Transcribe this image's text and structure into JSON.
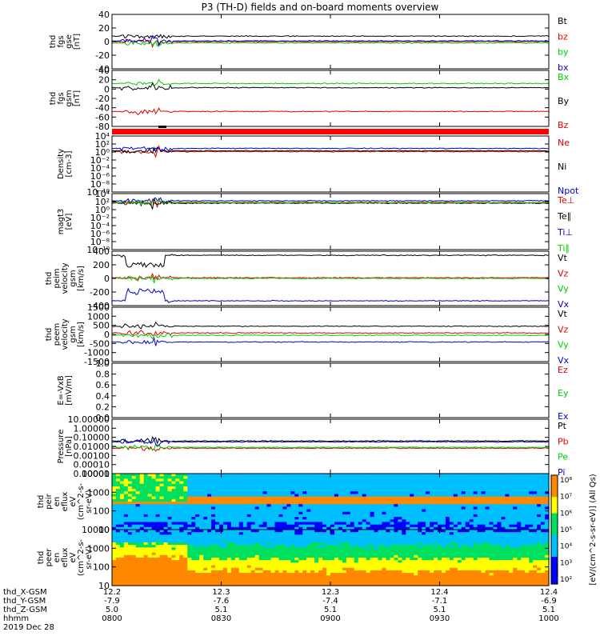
{
  "title": "P3 (TH-D) fields and on-board moments overview",
  "colors": {
    "black": "#000000",
    "red": "#e00000",
    "green": "#00cc00",
    "blue": "#0000d0"
  },
  "chart_data": [
    {
      "type": "line",
      "panel_id": "fgs-gse",
      "ylabel_lines": [
        "thd",
        "fgs",
        "gse",
        "[nT]"
      ],
      "ylim": [
        -40,
        40
      ],
      "yticks": [
        "40",
        "20",
        "0",
        "-20",
        "-40"
      ],
      "series": [
        {
          "name": "Bt",
          "color": "#000000",
          "baseline": 8
        },
        {
          "name": "bz",
          "color": "#e00000",
          "baseline": 0
        },
        {
          "name": "by",
          "color": "#00cc00",
          "baseline": -2
        },
        {
          "name": "bx",
          "color": "#0000d0",
          "baseline": 1
        }
      ]
    },
    {
      "type": "line",
      "panel_id": "fgs-gsm",
      "ylabel_lines": [
        "thd",
        "fgs",
        "gsm",
        "[nT]"
      ],
      "ylim": [
        -80,
        40
      ],
      "yticks": [
        "40",
        "20",
        "0",
        "-20",
        "-40",
        "-60",
        "-80"
      ],
      "series": [
        {
          "name": "Bx",
          "color": "#00cc00",
          "baseline": 12
        },
        {
          "name": "By",
          "color": "#000000",
          "baseline": 3
        },
        {
          "name": "Bz",
          "color": "#e00000",
          "baseline": -48
        }
      ]
    },
    {
      "type": "line",
      "panel_id": "density",
      "ylabel_lines": [
        "Density",
        "[cm-3]"
      ],
      "log": true,
      "ylim": [
        -10,
        4
      ],
      "yticks": [
        "10⁴",
        "10²",
        "10⁰",
        "10⁻²",
        "10⁻⁴",
        "10⁻⁶",
        "10⁻⁸",
        "10⁻¹⁰"
      ],
      "series": [
        {
          "name": "Ne",
          "color": "#e00000",
          "baseline": 0.1
        },
        {
          "name": "Ni",
          "color": "#000000",
          "baseline": 0.3
        },
        {
          "name": "Npot",
          "color": "#0000d0",
          "baseline": 0.9
        }
      ]
    },
    {
      "type": "line",
      "panel_id": "temperature",
      "ylabel_lines": [
        "magt3",
        "[eV]"
      ],
      "log": true,
      "ylim": [
        -10,
        4
      ],
      "yticks": [
        "10⁴",
        "10²",
        "10⁰",
        "10⁻²",
        "10⁻⁴",
        "10⁻⁶",
        "10⁻⁸",
        "10⁻¹⁰"
      ],
      "series": [
        {
          "name": "Te⊥",
          "color": "#e00000",
          "baseline": 1.8
        },
        {
          "name": "Te∥",
          "color": "#000000",
          "baseline": 1.6
        },
        {
          "name": "Ti⊥",
          "color": "#0000d0",
          "baseline": 2.2
        },
        {
          "name": "Ti∥",
          "color": "#00cc00",
          "baseline": 1.7
        }
      ]
    },
    {
      "type": "line",
      "panel_id": "peim-velocity",
      "ylabel_lines": [
        "thd",
        "peim",
        "velocity",
        "gsm",
        "[km/s]"
      ],
      "ylim": [
        -400,
        400
      ],
      "yticks": [
        "400",
        "200",
        "0",
        "-200",
        "-400"
      ],
      "series": [
        {
          "name": "Vt",
          "color": "#000000",
          "baseline": 340
        },
        {
          "name": "Vz",
          "color": "#e00000",
          "baseline": 10
        },
        {
          "name": "Vy",
          "color": "#00cc00",
          "baseline": 0
        },
        {
          "name": "Vx",
          "color": "#0000d0",
          "baseline": -330
        }
      ]
    },
    {
      "type": "line",
      "panel_id": "peem-velocity",
      "ylabel_lines": [
        "thd",
        "peem",
        "velocity",
        "gsm",
        "[km/s]"
      ],
      "ylim": [
        -1500,
        1500
      ],
      "yticks": [
        "1500",
        "1000",
        "500",
        "0",
        "-500",
        "-1000",
        "-1500"
      ],
      "series": [
        {
          "name": "Vt",
          "color": "#000000",
          "baseline": 450
        },
        {
          "name": "Vz",
          "color": "#e00000",
          "baseline": 80
        },
        {
          "name": "Vy",
          "color": "#00cc00",
          "baseline": -50
        },
        {
          "name": "Vx",
          "color": "#0000d0",
          "baseline": -420
        }
      ]
    },
    {
      "type": "line",
      "panel_id": "efield",
      "ylabel_lines": [
        "E=-VxB",
        "[mV/m]"
      ],
      "ylim": [
        0.0,
        1.0
      ],
      "yticks": [
        "1.0",
        "0.8",
        "0.6",
        "0.4",
        "0.2",
        "0.0"
      ],
      "series": [
        {
          "name": "Ez",
          "color": "#e00000"
        },
        {
          "name": "Ey",
          "color": "#00cc00"
        },
        {
          "name": "Ex",
          "color": "#0000d0"
        }
      ]
    },
    {
      "type": "line",
      "panel_id": "pressure",
      "ylabel_lines": [
        "Pressure",
        "[nPa]"
      ],
      "log": true,
      "ylim": [
        -5,
        1
      ],
      "yticks": [
        "10.00000",
        "1.00000",
        "0.10000",
        "0.01000",
        "0.00100",
        "0.00010",
        "0.00001"
      ],
      "series": [
        {
          "name": "Pt",
          "color": "#000000",
          "baseline": -1.4
        },
        {
          "name": "Pb",
          "color": "#e00000",
          "baseline": -2.2
        },
        {
          "name": "Pe",
          "color": "#00cc00",
          "baseline": -2.1
        },
        {
          "name": "Pi",
          "color": "#0000d0",
          "baseline": -1.5
        }
      ]
    },
    {
      "type": "heatmap",
      "panel_id": "peir-spectrogram",
      "ylabel_lines": [
        "thd",
        "peir",
        "en",
        "eflux",
        "eV",
        "(cm^2-s-",
        "sr-eV)"
      ],
      "yticks": [
        "10000",
        "1000",
        "100",
        "10"
      ]
    },
    {
      "type": "heatmap",
      "panel_id": "peer-spectrogram",
      "ylabel_lines": [
        "thd",
        "peer",
        "en",
        "eflux",
        "eV",
        "(cm^2-s-",
        "sr-eV)"
      ],
      "yticks": [
        "10000",
        "1000",
        "100",
        "10"
      ]
    }
  ],
  "colorbar": {
    "label": "[eV/(cm^2-s-sr-eV)] (All Qs)",
    "ticks": [
      "10⁸",
      "10⁷",
      "10⁶",
      "10⁵",
      "10⁴",
      "10³",
      "10²"
    ]
  },
  "xaxis": {
    "row_labels": [
      "thd_X-GSM",
      "thd_Y-GSM",
      "thd_Z-GSM",
      "hhmm",
      "2019 Dec 28"
    ],
    "columns": [
      [
        "12.2",
        "-7.9",
        "5.0",
        "0800"
      ],
      [
        "12.3",
        "-7.6",
        "5.1",
        "0830"
      ],
      [
        "12.3",
        "-7.4",
        "5.1",
        "0900"
      ],
      [
        "12.4",
        "-7.1",
        "5.1",
        "0930"
      ],
      [
        "12.4",
        "-6.9",
        "5.1",
        "1000"
      ]
    ]
  }
}
